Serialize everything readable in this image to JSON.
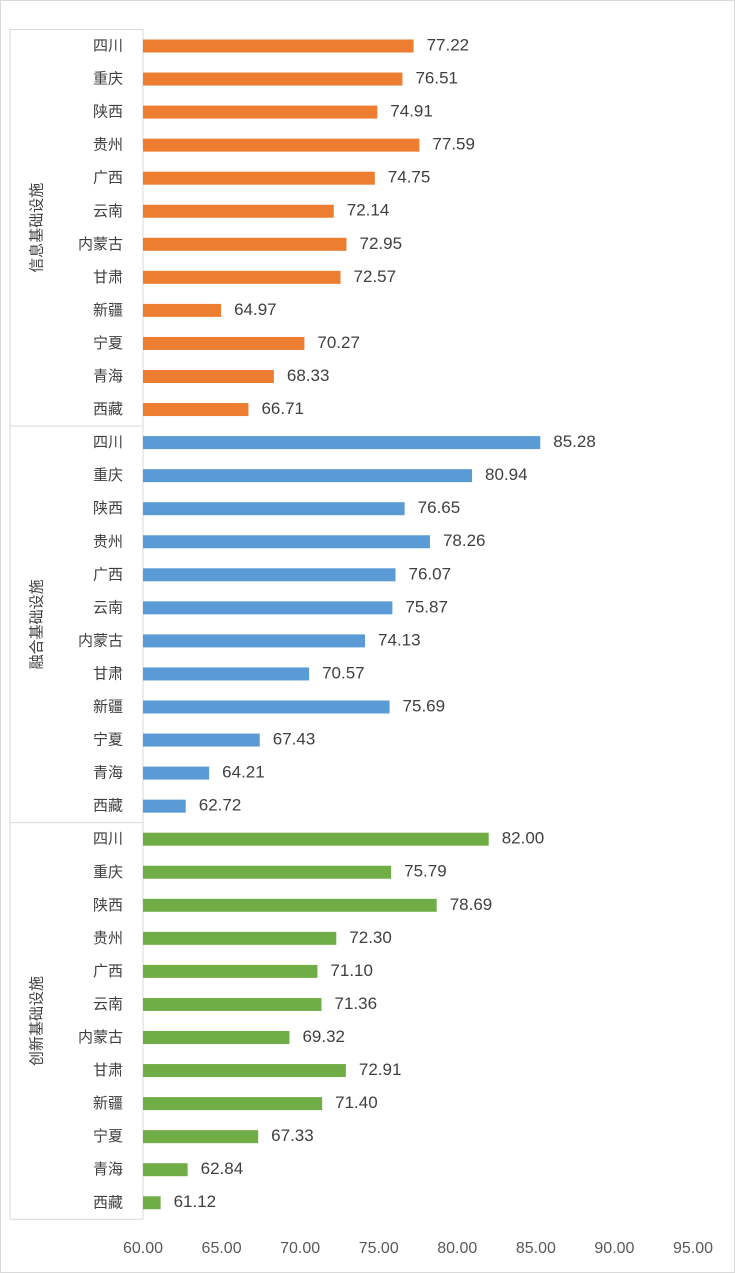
{
  "chart_data": {
    "type": "bar",
    "orientation": "horizontal",
    "title": "",
    "xlabel": "",
    "ylabel": "",
    "xlim": [
      60,
      95
    ],
    "x_ticks": [
      "60.00",
      "65.00",
      "70.00",
      "75.00",
      "80.00",
      "85.00",
      "90.00",
      "95.00"
    ],
    "grid": false,
    "legend": "none",
    "categories": [
      "四川",
      "重庆",
      "陕西",
      "贵州",
      "广西",
      "云南",
      "内蒙古",
      "甘肃",
      "新疆",
      "宁夏",
      "青海",
      "西藏"
    ],
    "groups": [
      {
        "name": "信息基础设施",
        "color": "#ED7D31",
        "values": [
          77.22,
          76.51,
          74.91,
          77.59,
          74.75,
          72.14,
          72.95,
          72.57,
          64.97,
          70.27,
          68.33,
          66.71
        ],
        "value_labels": [
          "77.22",
          "76.51",
          "74.91",
          "77.59",
          "74.75",
          "72.14",
          "72.95",
          "72.57",
          "64.97",
          "70.27",
          "68.33",
          "66.71"
        ]
      },
      {
        "name": "融合基础设施",
        "color": "#5B9BD5",
        "values": [
          85.28,
          80.94,
          76.65,
          78.26,
          76.07,
          75.87,
          74.13,
          70.57,
          75.69,
          67.43,
          64.21,
          62.72
        ],
        "value_labels": [
          "85.28",
          "80.94",
          "76.65",
          "78.26",
          "76.07",
          "75.87",
          "74.13",
          "70.57",
          "75.69",
          "67.43",
          "64.21",
          "62.72"
        ]
      },
      {
        "name": "创新基础设施",
        "color": "#70AD47",
        "values": [
          82.0,
          75.79,
          78.69,
          72.3,
          71.1,
          71.36,
          69.32,
          72.91,
          71.4,
          67.33,
          62.84,
          61.12
        ],
        "value_labels": [
          "82.00",
          "75.79",
          "78.69",
          "72.30",
          "71.10",
          "71.36",
          "69.32",
          "72.91",
          "71.40",
          "67.33",
          "62.84",
          "61.12"
        ]
      }
    ]
  }
}
